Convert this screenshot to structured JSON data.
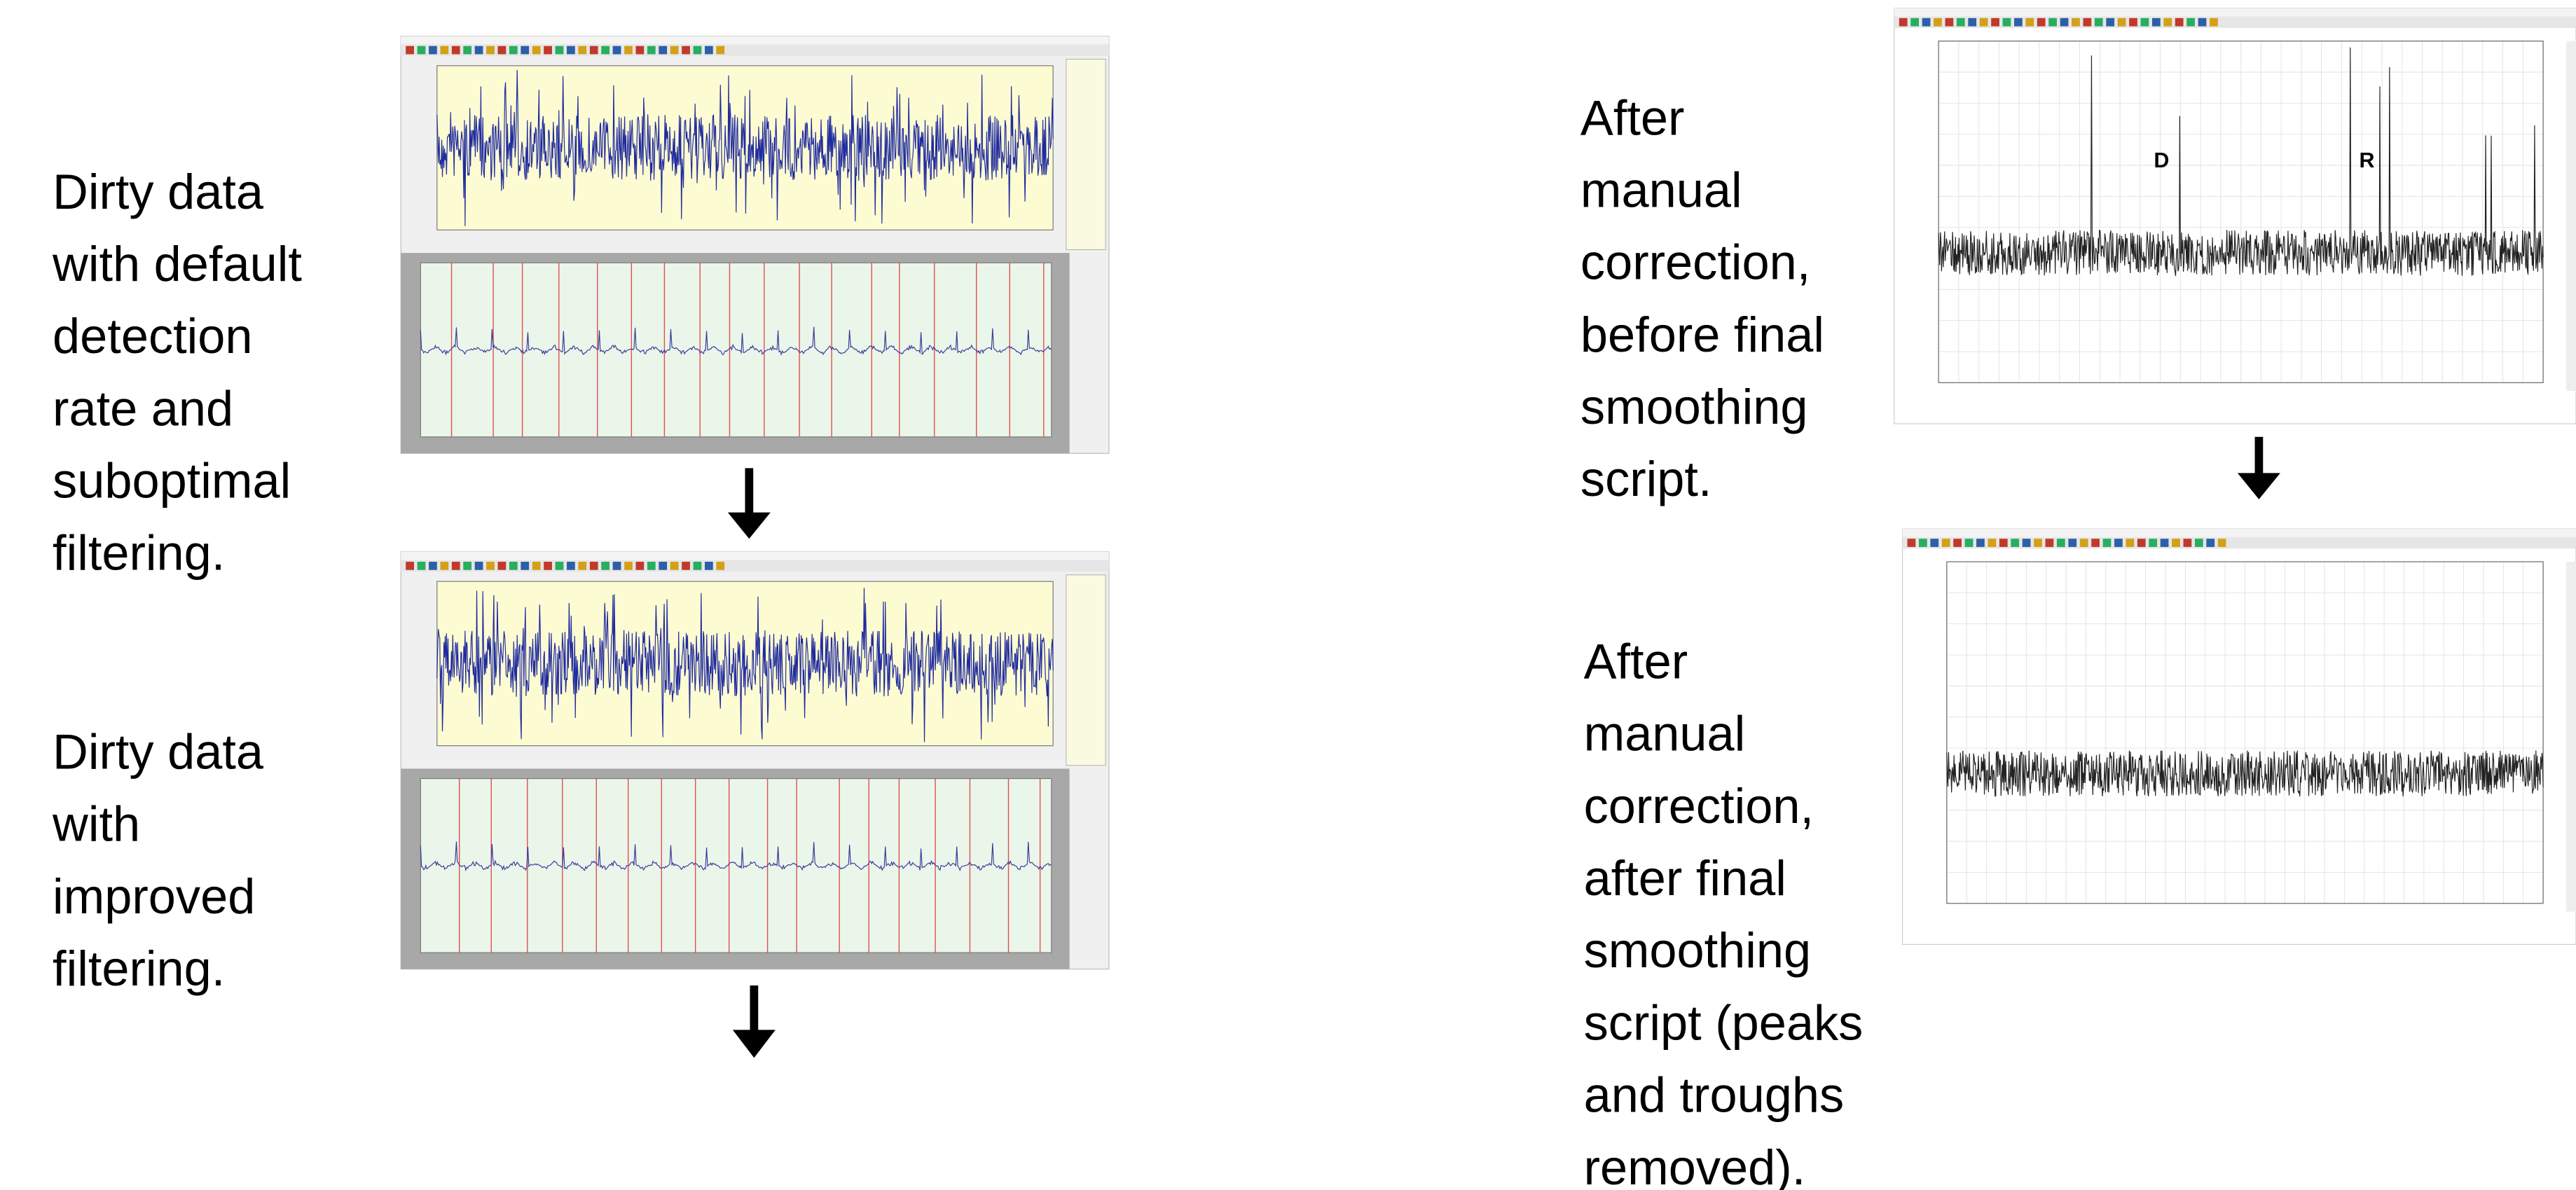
{
  "captions": [
    {
      "lines": [
        "Dirty data",
        "with default",
        "detection",
        "rate and",
        "suboptimal",
        "filtering."
      ]
    },
    {
      "lines": [
        "Dirty data",
        "with",
        "improved",
        "filtering."
      ]
    },
    {
      "lines": [
        "After",
        "manual",
        "correction,",
        "before final",
        "smoothing",
        "script."
      ]
    },
    {
      "lines": [
        "After",
        "manual",
        "correction,",
        "after final",
        "smoothing",
        "script (peaks",
        "and troughs",
        "removed)."
      ]
    }
  ],
  "markers": [
    "D",
    "R"
  ]
}
